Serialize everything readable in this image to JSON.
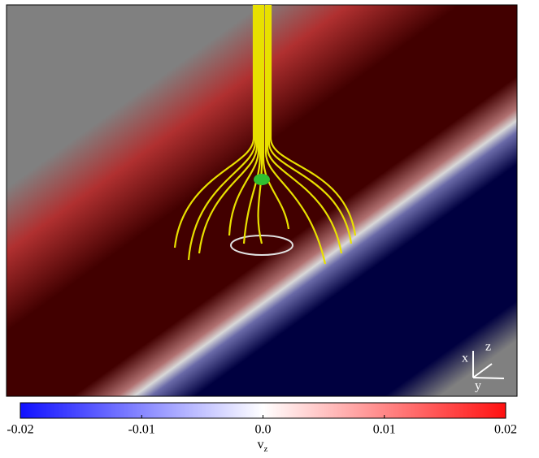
{
  "chart_data": {
    "type": "colorbar",
    "lim": [
      -0.02,
      0.02
    ],
    "ticks": [
      -0.02,
      -0.01,
      {
        "value": 0,
        "label": "0.0"
      },
      0.01,
      0.02
    ],
    "colors": [
      "#1010ff",
      "#ffffff",
      "#ff1010"
    ],
    "label": "v",
    "label_sub": "z",
    "triad": {
      "x": "x",
      "y": "y",
      "z": "z"
    }
  }
}
